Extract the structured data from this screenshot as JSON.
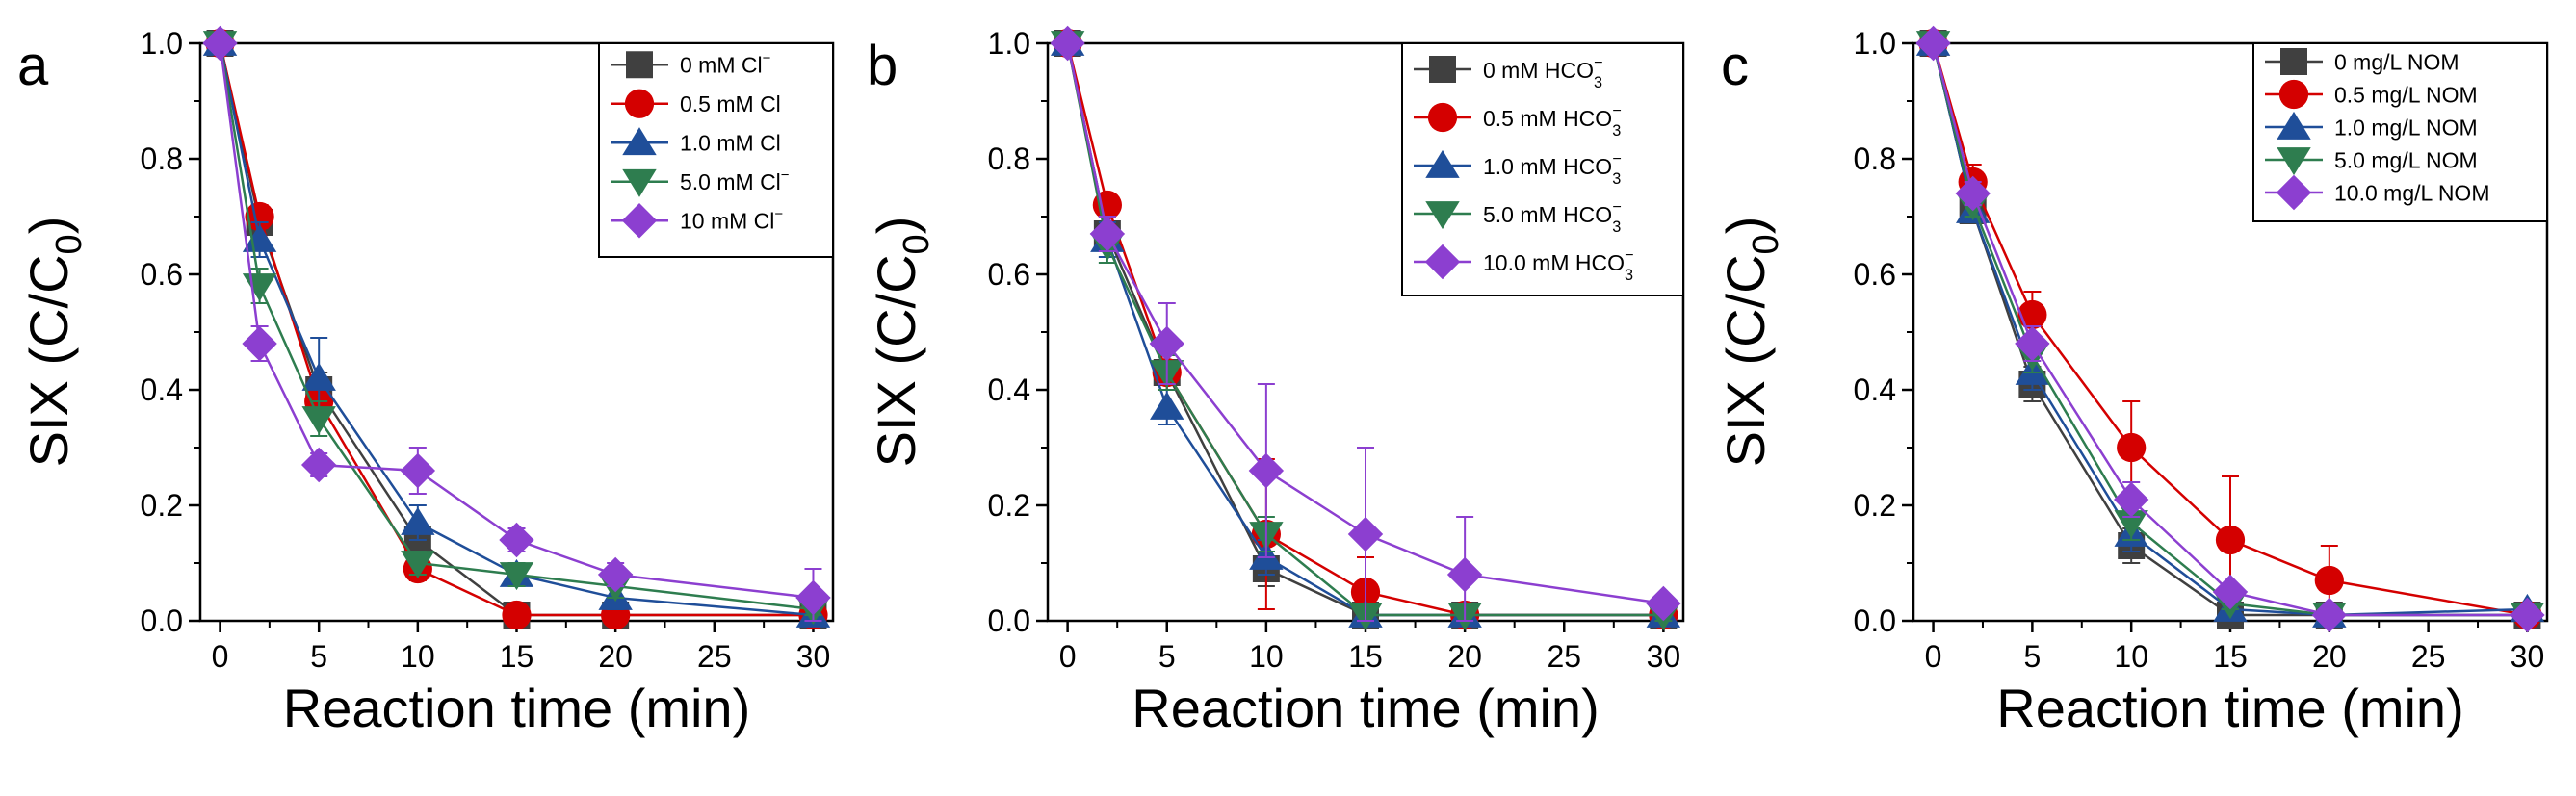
{
  "figure": {
    "panels": [
      "a",
      "b",
      "c"
    ]
  },
  "colors": {
    "black": "#404040",
    "red": "#d40000",
    "blue": "#1f4e99",
    "green": "#2e7d4f",
    "purple": "#8c3fd0"
  },
  "chart_data": [
    {
      "panel": "a",
      "type": "line",
      "xlabel": "Reaction time (min)",
      "ylabel_main": "SIX (C/C",
      "ylabel_sub": "0",
      "ylabel_close": ")",
      "xlim": [
        -1,
        31
      ],
      "ylim": [
        0,
        1.0
      ],
      "xticks": [
        0,
        5,
        10,
        15,
        20,
        25,
        30
      ],
      "xtick_labels": [
        "0",
        "5",
        "10",
        "15",
        "20",
        "25",
        "30"
      ],
      "yticks": [
        0,
        0.2,
        0.4,
        0.6,
        0.8,
        1.0
      ],
      "ytick_labels": [
        "0.0",
        "0.2",
        "0.4",
        "0.6",
        "0.8",
        "1.0"
      ],
      "x": [
        0,
        2,
        5,
        10,
        15,
        20,
        30
      ],
      "series": [
        {
          "name": "0 mM Cl⁻",
          "legend_main": "0 mM Cl",
          "legend_sup": "−",
          "legend_sub": "",
          "marker": "square",
          "color": "#404040",
          "values": [
            1.0,
            0.69,
            0.4,
            0.14,
            0.01,
            0.01,
            0.01
          ],
          "err": [
            0,
            0.02,
            0.03,
            0.03,
            0.01,
            0.01,
            0.01
          ]
        },
        {
          "name": "0.5 mM Cl",
          "legend_main": "0.5 mM Cl",
          "legend_sup": "",
          "legend_sub": "",
          "marker": "circle",
          "color": "#d40000",
          "values": [
            1.0,
            0.7,
            0.38,
            0.09,
            0.01,
            0.01,
            0.01
          ],
          "err": [
            0,
            0.02,
            0.03,
            0.02,
            0.01,
            0.01,
            0.01
          ]
        },
        {
          "name": "1.0 mM Cl",
          "legend_main": "1.0 mM Cl",
          "legend_sup": "",
          "legend_sub": "",
          "marker": "triangle-up",
          "color": "#1f4e99",
          "values": [
            1.0,
            0.66,
            0.42,
            0.17,
            0.08,
            0.04,
            0.01
          ],
          "err": [
            0,
            0.03,
            0.07,
            0.03,
            0.02,
            0.02,
            0.01
          ]
        },
        {
          "name": "5.0 mM Cl⁻",
          "legend_main": "5.0 mM Cl",
          "legend_sup": "−",
          "legend_sub": "",
          "marker": "triangle-down",
          "color": "#2e7d4f",
          "values": [
            1.0,
            0.58,
            0.35,
            0.1,
            0.08,
            0.06,
            0.02
          ],
          "err": [
            0,
            0.03,
            0.03,
            0.02,
            0.02,
            0.02,
            0.01
          ]
        },
        {
          "name": "10 mM Cl⁻",
          "legend_main": "10 mM Cl",
          "legend_sup": "−",
          "legend_sub": "",
          "marker": "diamond",
          "color": "#8c3fd0",
          "values": [
            1.0,
            0.48,
            0.27,
            0.26,
            0.14,
            0.08,
            0.04
          ],
          "err": [
            0,
            0.03,
            0.02,
            0.04,
            0.02,
            0.02,
            0.05
          ]
        }
      ]
    },
    {
      "panel": "b",
      "type": "line",
      "xlabel": "Reaction time (min)",
      "ylabel_main": "SIX (C/C",
      "ylabel_sub": "0",
      "ylabel_close": ")",
      "xlim": [
        -1,
        31
      ],
      "ylim": [
        0,
        1.0
      ],
      "xticks": [
        0,
        5,
        10,
        15,
        20,
        25,
        30
      ],
      "xtick_labels": [
        "0",
        "5",
        "10",
        "15",
        "20",
        "25",
        "30"
      ],
      "yticks": [
        0,
        0.2,
        0.4,
        0.6,
        0.8,
        1.0
      ],
      "ytick_labels": [
        "0.0",
        "0.2",
        "0.4",
        "0.6",
        "0.8",
        "1.0"
      ],
      "x": [
        0,
        2,
        5,
        10,
        15,
        20,
        30
      ],
      "series": [
        {
          "name": "0 mM HCO₃⁻",
          "legend_main": "0 mM HCO",
          "legend_sup": "−",
          "legend_sub": "3",
          "marker": "square",
          "color": "#404040",
          "values": [
            1.0,
            0.67,
            0.43,
            0.09,
            0.01,
            0.01,
            0.01
          ],
          "err": [
            0,
            0.02,
            0.03,
            0.03,
            0.01,
            0.01,
            0.01
          ]
        },
        {
          "name": "0.5 mM HCO₃⁻",
          "legend_main": "0.5 mM HCO",
          "legend_sup": "−",
          "legend_sub": "3",
          "marker": "circle",
          "color": "#d40000",
          "values": [
            1.0,
            0.72,
            0.43,
            0.15,
            0.05,
            0.01,
            0.01
          ],
          "err": [
            0,
            0.02,
            0.03,
            0.13,
            0.06,
            0.01,
            0.01
          ]
        },
        {
          "name": "1.0 mM HCO₃⁻",
          "legend_main": "1.0 mM HCO",
          "legend_sup": "−",
          "legend_sub": "3",
          "marker": "triangle-up",
          "color": "#1f4e99",
          "values": [
            1.0,
            0.66,
            0.37,
            0.11,
            0.01,
            0.01,
            0.01
          ],
          "err": [
            0,
            0.03,
            0.03,
            0.03,
            0.01,
            0.01,
            0.01
          ]
        },
        {
          "name": "5.0 mM HCO₃⁻",
          "legend_main": "5.0 mM HCO",
          "legend_sup": "−",
          "legend_sub": "3",
          "marker": "triangle-down",
          "color": "#2e7d4f",
          "values": [
            1.0,
            0.65,
            0.43,
            0.15,
            0.01,
            0.01,
            0.01
          ],
          "err": [
            0,
            0.03,
            0.03,
            0.03,
            0.01,
            0.01,
            0.01
          ]
        },
        {
          "name": "10.0 mM HCO₃⁻",
          "legend_main": "10.0 mM HCO",
          "legend_sup": "−",
          "legend_sub": "3",
          "marker": "diamond",
          "color": "#8c3fd0",
          "values": [
            1.0,
            0.67,
            0.48,
            0.26,
            0.15,
            0.08,
            0.03
          ],
          "err": [
            0,
            0.03,
            0.07,
            0.15,
            0.15,
            0.1,
            0.01
          ]
        }
      ]
    },
    {
      "panel": "c",
      "type": "line",
      "xlabel": "Reaction time (min)",
      "ylabel_main": "SIX (C/C",
      "ylabel_sub": "0",
      "ylabel_close": ")",
      "xlim": [
        -1,
        31
      ],
      "ylim": [
        0,
        1.0
      ],
      "xticks": [
        0,
        5,
        10,
        15,
        20,
        25,
        30
      ],
      "xtick_labels": [
        "0",
        "5",
        "10",
        "15",
        "20",
        "25",
        "30"
      ],
      "yticks": [
        0,
        0.2,
        0.4,
        0.6,
        0.8,
        1.0
      ],
      "ytick_labels": [
        "0.0",
        "0.2",
        "0.4",
        "0.6",
        "0.8",
        "1.0"
      ],
      "x": [
        0,
        2,
        5,
        10,
        15,
        20,
        30
      ],
      "series": [
        {
          "name": "0 mg/L NOM",
          "legend_main": "0 mg/L NOM",
          "legend_sup": "",
          "legend_sub": "",
          "marker": "square",
          "color": "#404040",
          "values": [
            1.0,
            0.71,
            0.41,
            0.13,
            0.01,
            0.01,
            0.01
          ],
          "err": [
            0,
            0.02,
            0.03,
            0.03,
            0.01,
            0.01,
            0.01
          ]
        },
        {
          "name": "0.5 mg/L NOM",
          "legend_main": "0.5 mg/L NOM",
          "legend_sup": "",
          "legend_sub": "",
          "marker": "circle",
          "color": "#d40000",
          "values": [
            1.0,
            0.76,
            0.53,
            0.3,
            0.14,
            0.07,
            0.01
          ],
          "err": [
            0,
            0.03,
            0.04,
            0.08,
            0.11,
            0.06,
            0.01
          ]
        },
        {
          "name": "1.0 mg/L NOM",
          "legend_main": "1.0 mg/L NOM",
          "legend_sup": "",
          "legend_sub": "",
          "marker": "triangle-up",
          "color": "#1f4e99",
          "values": [
            1.0,
            0.71,
            0.43,
            0.15,
            0.02,
            0.01,
            0.02
          ],
          "err": [
            0,
            0.02,
            0.03,
            0.03,
            0.01,
            0.01,
            0.01
          ]
        },
        {
          "name": "5.0 mg/L NOM",
          "legend_main": "5.0 mg/L NOM",
          "legend_sup": "",
          "legend_sub": "",
          "marker": "triangle-down",
          "color": "#2e7d4f",
          "values": [
            1.0,
            0.72,
            0.46,
            0.17,
            0.03,
            0.01,
            0.01
          ],
          "err": [
            0,
            0.02,
            0.03,
            0.03,
            0.01,
            0.01,
            0.01
          ]
        },
        {
          "name": "10.0 mg/L NOM",
          "legend_main": "10.0 mg/L NOM",
          "legend_sup": "",
          "legend_sub": "",
          "marker": "diamond",
          "color": "#8c3fd0",
          "values": [
            1.0,
            0.74,
            0.48,
            0.21,
            0.05,
            0.01,
            0.01
          ],
          "err": [
            0,
            0.02,
            0.03,
            0.03,
            0.01,
            0.01,
            0.01
          ]
        }
      ]
    }
  ]
}
